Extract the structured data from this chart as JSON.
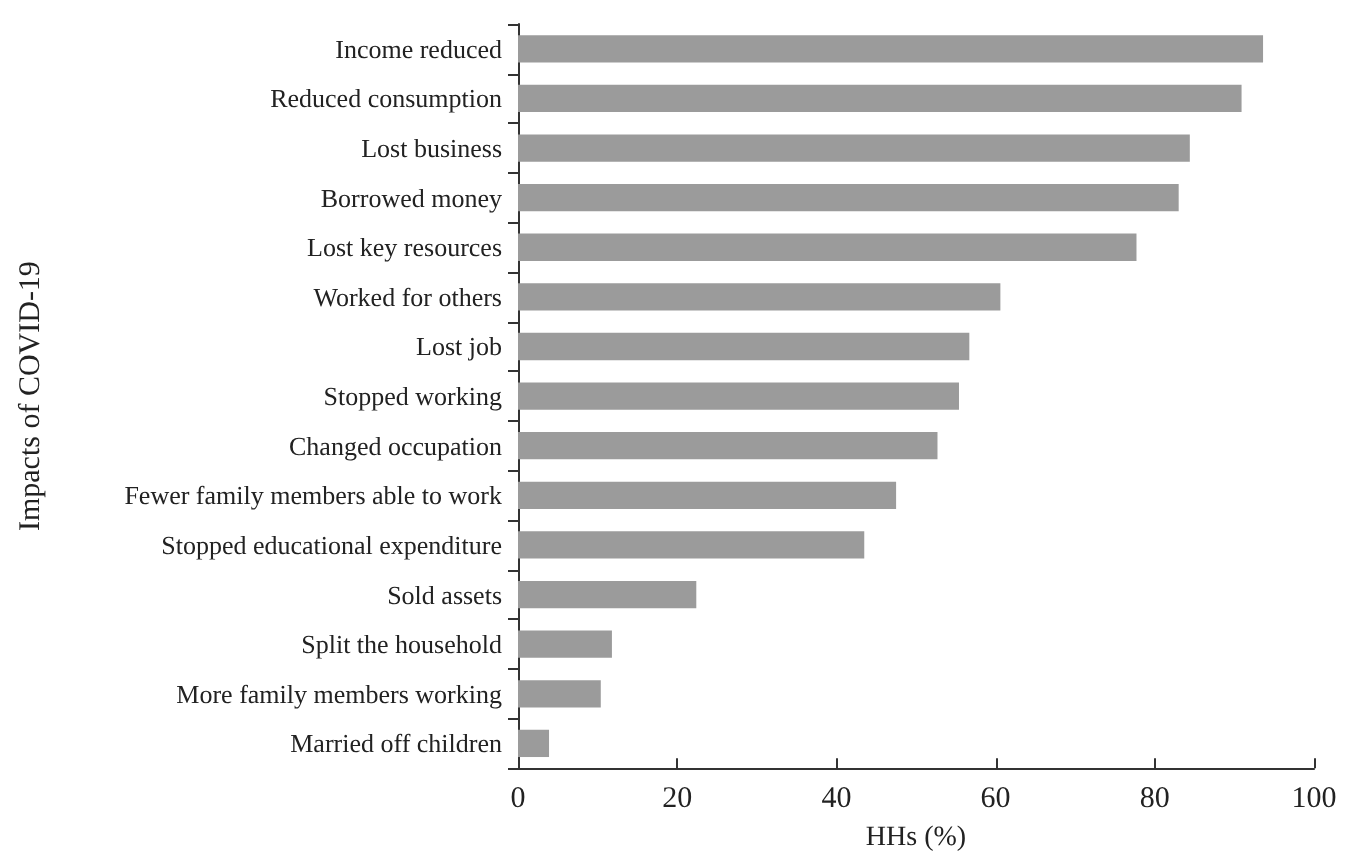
{
  "chart_data": {
    "type": "bar",
    "orientation": "horizontal",
    "xlabel": "HHs (%)",
    "ylabel": "Impacts of COVID-19",
    "categories": [
      "Income reduced",
      "Reduced consumption",
      "Lost business",
      "Borrowed money",
      "Lost key resources",
      "Worked for others",
      "Lost job",
      "Stopped working",
      "Changed occupation",
      "Fewer family members able to work",
      "Stopped educational expenditure",
      "Sold assets",
      "Split the household",
      "More family members working",
      "Married off children"
    ],
    "values": [
      93.6,
      90.9,
      84.4,
      83.0,
      77.7,
      60.6,
      56.7,
      55.4,
      52.7,
      47.5,
      43.5,
      22.4,
      11.8,
      10.4,
      3.9
    ],
    "color": "#9b9b9b",
    "xlim": [
      0,
      100
    ],
    "xticks": [
      0,
      20,
      40,
      60,
      80,
      100
    ],
    "grid": false
  }
}
